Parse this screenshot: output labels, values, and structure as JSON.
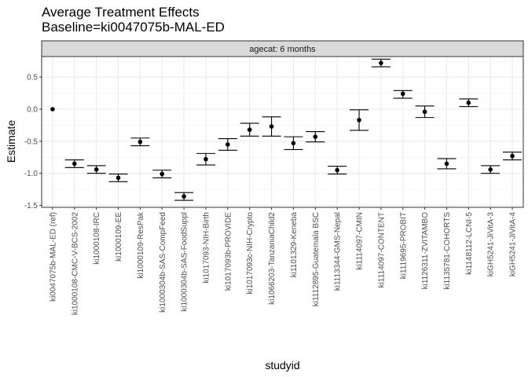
{
  "chart_data": {
    "type": "scatter",
    "title": "Average Treatment Effects",
    "subtitle": "Baseline=ki0047075b-MAL-ED",
    "xlabel": "studyid",
    "ylabel": "Estimate",
    "facet_label": "agecat: 6 months",
    "ylim": [
      -1.53,
      0.82
    ],
    "yticks": [
      0.5,
      0.0,
      -0.5,
      -1.0,
      -1.5
    ],
    "ytick_labels": [
      "0.5",
      "0.0",
      "-0.5",
      "-1.0",
      "-1.5"
    ],
    "grid": true,
    "legend": "none",
    "categories": [
      "ki0047075b-MAL-ED (ref)",
      "ki1000108-CMC-V-BCS-2002",
      "ki1000108-IRC",
      "ki1000109-EE",
      "ki1000109-ResPak",
      "ki1000304b-SAS-CompFeed",
      "ki1000304b-SAS-FoodSuppl",
      "ki1017093-NIH-Birth",
      "ki1017093b-PROVIDE",
      "ki1017093c-NIH-Crypto",
      "ki1066203-TanzaniaChild2",
      "ki1101329-Keneba",
      "ki1112895-Guatemala BSC",
      "ki1113344-GMS-Nepal",
      "ki1114097-CMIN",
      "ki1114097-CONTENT",
      "ki1119695-PROBIT",
      "ki1126311-ZVITAMBO",
      "ki1135781-COHORTS",
      "ki1148112-LCNI-5",
      "kiGH5241-JiVitA-3",
      "kiGH5241-JiVitA-4"
    ],
    "estimate": [
      0.0,
      -0.85,
      -0.94,
      -1.07,
      -0.51,
      -1.01,
      -1.36,
      -0.78,
      -0.55,
      -0.32,
      -0.27,
      -0.53,
      -0.43,
      -0.95,
      -0.17,
      0.72,
      0.24,
      -0.04,
      -0.85,
      0.1,
      -0.94,
      -0.73
    ],
    "ci_lower": [
      null,
      -0.91,
      -1.0,
      -1.13,
      -0.57,
      -1.07,
      -1.42,
      -0.87,
      -0.64,
      -0.42,
      -0.42,
      -0.63,
      -0.51,
      -1.01,
      -0.33,
      0.66,
      0.17,
      -0.13,
      -0.93,
      0.04,
      -1.0,
      -0.79
    ],
    "ci_upper": [
      null,
      -0.79,
      -0.88,
      -1.01,
      -0.45,
      -0.95,
      -1.3,
      -0.69,
      -0.46,
      -0.22,
      -0.12,
      -0.43,
      -0.35,
      -0.89,
      -0.01,
      0.78,
      0.29,
      0.05,
      -0.77,
      0.16,
      -0.88,
      -0.67
    ]
  }
}
